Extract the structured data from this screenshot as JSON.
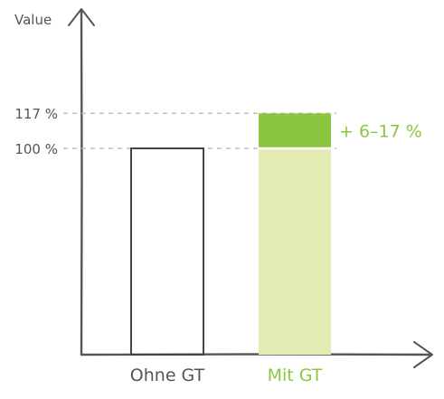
{
  "colors": {
    "axis": "#555555",
    "bar_outline": "#444444",
    "green_dark": "#8CC63F",
    "green_light": "#E2EBB4",
    "green_text": "#8CC63F",
    "gray_text": "#555555",
    "guide": "#B5B5B5"
  },
  "chart_data": {
    "type": "bar",
    "ylabel": "Value",
    "categories": [
      "Ohne GT",
      "Mit GT"
    ],
    "series": [
      {
        "values": [
          100,
          100
        ]
      }
    ],
    "increase": {
      "category": "Mit GT",
      "from": 100,
      "to": 117,
      "label": "+ 6–17 %"
    },
    "yticks": [
      {
        "value": 117,
        "label": "117 %"
      },
      {
        "value": 100,
        "label": "100 %"
      }
    ],
    "ylim": [
      0,
      117
    ],
    "grid": false
  }
}
